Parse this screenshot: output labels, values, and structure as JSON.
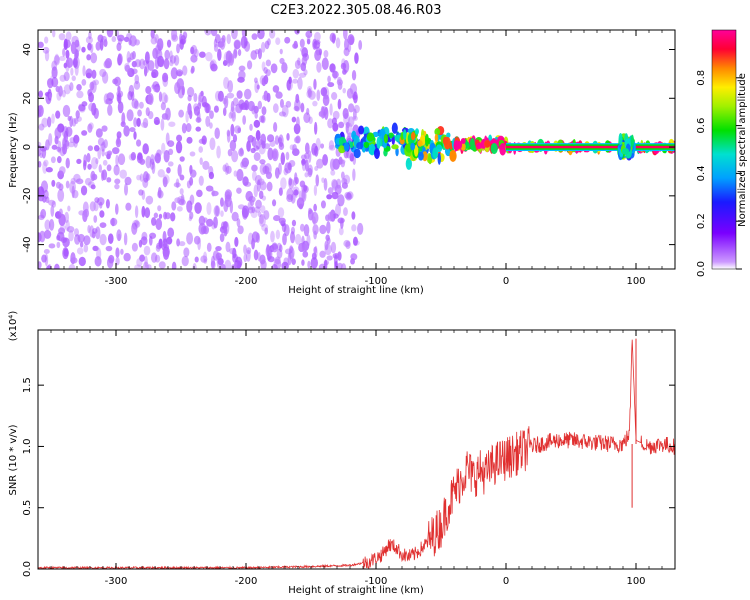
{
  "title": "C2E3.2022.305.08.46.R03",
  "colors": {
    "signal_line": "#e03030",
    "spectrum_low": "#7a00ff",
    "spectrum_high": "#ff0066"
  },
  "chart_data": [
    {
      "type": "heatmap",
      "title": "",
      "xlabel": "Height of straight line (km)",
      "ylabel": "Frequency (Hz)",
      "xlim": [
        -360,
        130
      ],
      "ylim": [
        -50,
        48
      ],
      "xticks": [
        -300,
        -200,
        -100,
        0,
        100
      ],
      "yticks": [
        -40,
        -20,
        0,
        20,
        40
      ],
      "grid": false,
      "colorbar": {
        "label": "Normalized spectral amplitude",
        "range": [
          0.0,
          1.0
        ],
        "ticks": [
          "0.0",
          "0.2",
          "0.4",
          "0.6",
          "0.8"
        ],
        "colormap": "violet-blue-cyan-green-yellow-red-magenta"
      },
      "features": [
        {
          "x_range": [
            -360,
            -112
          ],
          "freq_range": [
            -50,
            48
          ],
          "amplitude": 0.05,
          "note_kind": "noise"
        },
        {
          "x_range": [
            -130,
            -75
          ],
          "freq_center": 2,
          "freq_spread": 6,
          "amplitude": 0.45
        },
        {
          "x_range": [
            -80,
            -40
          ],
          "freq_center": 0,
          "freq_spread": 8,
          "amplitude": 0.6
        },
        {
          "x_range": [
            -40,
            0
          ],
          "freq_center": 1,
          "freq_spread": 2,
          "amplitude": 0.85
        },
        {
          "x_range": [
            0,
            130
          ],
          "freq_center": 0,
          "freq_spread": 1,
          "amplitude": 0.95
        },
        {
          "x_range": [
            88,
            98
          ],
          "freq_center": 0,
          "freq_spread": 4,
          "amplitude": 0.5
        }
      ]
    },
    {
      "type": "line",
      "title": "",
      "xlabel": "Height of straight line (km)",
      "ylabel": "SNR (10 * v/v)",
      "scale_label": "(x10⁴)",
      "xlim": [
        -360,
        130
      ],
      "ylim": [
        0.0,
        1.95
      ],
      "xticks": [
        -300,
        -200,
        -100,
        0,
        100
      ],
      "yticks": [
        "0.0",
        "0.5",
        "1.0",
        "1.5"
      ],
      "grid": false,
      "series": [
        {
          "x": [
            -360,
            -300,
            -250,
            -200,
            -150,
            -120,
            -105,
            -95,
            -90,
            -85,
            -80,
            -75,
            -70,
            -60,
            -50,
            -45,
            -40,
            -35,
            -30,
            -25,
            -20,
            -15,
            -10,
            -5,
            0,
            10,
            20,
            30,
            40,
            50,
            60,
            70,
            80,
            90,
            95,
            97,
            100,
            110,
            120,
            130
          ],
          "y": [
            0.01,
            0.01,
            0.01,
            0.01,
            0.02,
            0.03,
            0.06,
            0.12,
            0.2,
            0.18,
            0.12,
            0.1,
            0.12,
            0.22,
            0.35,
            0.5,
            0.62,
            0.72,
            0.82,
            0.75,
            0.8,
            0.78,
            0.85,
            0.88,
            0.9,
            0.95,
            1.0,
            1.03,
            1.05,
            1.05,
            1.04,
            1.03,
            1.02,
            1.02,
            1.1,
            1.9,
            1.05,
            1.0,
            1.02,
            1.0
          ]
        }
      ],
      "annotations": [
        {
          "x": 100,
          "y": 1.88,
          "kind": "spike"
        },
        {
          "x": 97,
          "y": 0.5,
          "kind": "dip"
        }
      ]
    }
  ]
}
